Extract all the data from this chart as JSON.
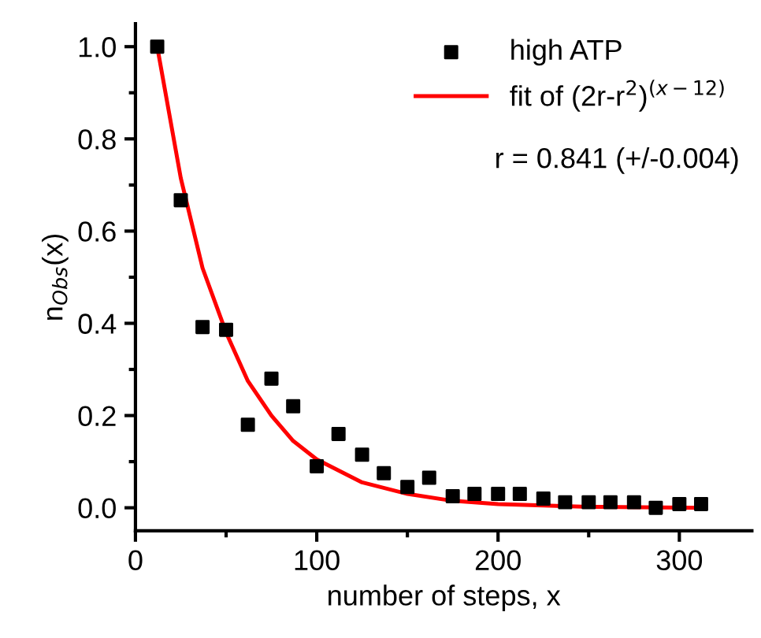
{
  "chart_data": {
    "type": "scatter",
    "xlabel": "number of steps, x",
    "ylabel": "n$_{Obs}$(x)",
    "series": [
      {
        "name": "high ATP",
        "color": "#000000",
        "marker": "square",
        "x": [
          12,
          25,
          37,
          50,
          62,
          75,
          87,
          100,
          112,
          125,
          137,
          150,
          162,
          175,
          187,
          200,
          212,
          225,
          237,
          250,
          262,
          275,
          287,
          300,
          312
        ],
        "values": [
          1.0,
          0.667,
          0.392,
          0.386,
          0.18,
          0.28,
          0.22,
          0.09,
          0.16,
          0.115,
          0.075,
          0.045,
          0.065,
          0.025,
          0.03,
          0.03,
          0.03,
          0.02,
          0.012,
          0.012,
          0.012,
          0.012,
          0.0,
          0.008,
          0.008
        ]
      },
      {
        "name": "fit of (2r-r$^{2}$)$^{(x−12)}$",
        "type": "line",
        "color": "#ff0000",
        "marker": "none",
        "line_style": "solid",
        "x": [
          12,
          25,
          37,
          50,
          62,
          75,
          87,
          100,
          125,
          150,
          175,
          200,
          250,
          312
        ],
        "values": [
          1.0,
          0.715,
          0.52,
          0.38,
          0.275,
          0.2,
          0.145,
          0.105,
          0.055,
          0.03,
          0.015,
          0.008,
          0.002,
          0.0
        ]
      }
    ],
    "annotations": [
      "r = 0.841 (+/-0.004)"
    ],
    "xlim": [
      0,
      340
    ],
    "xticks": [
      0,
      100,
      200,
      300
    ],
    "ylim": [
      -0.05,
      1.05
    ],
    "yticks": [
      {
        "value": 0,
        "label": "0.0"
      },
      0.2,
      0.4,
      0.6,
      0.8,
      {
        "value": 1,
        "label": "1.0"
      }
    ],
    "legend": "top right",
    "grid": false
  }
}
